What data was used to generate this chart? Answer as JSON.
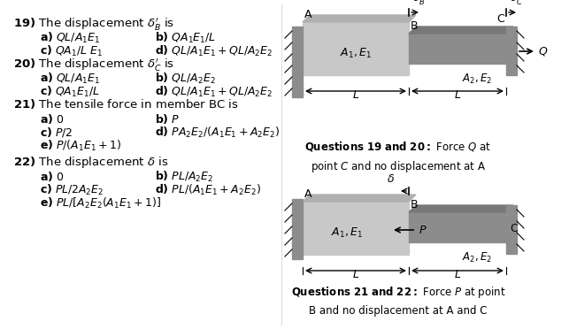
{
  "bg_color": "#ffffff",
  "text_color": "#000000",
  "gray_light": "#c8c8c8",
  "gray_dark": "#888888",
  "gray_wall": "#707070",
  "q19_title": "19) The displacement $\\delta_B^{\\prime}$ is",
  "q19_a": "a) $QL/A_1E_1$",
  "q19_b": "b) $QA_1E_1/L$",
  "q19_c": "c) $QA_1/L\\ E_1$",
  "q19_d": "d) $QL/A_1E_1 + QL/A_2E_2$",
  "q20_title": "20) The displacement $\\delta_C^{\\prime}$ is",
  "q20_a": "a) $QL/A_1E_1$",
  "q20_b": "b) $QL/A_2E_2$",
  "q20_c": "c) $QA_1E_1/L$",
  "q20_d": "d) $QL/A_1E_1 + QL/A_2E_2$",
  "q21_title": "21) The tensile force in member BC is",
  "q21_a": "a) 0",
  "q21_b": "b) $P$",
  "q21_c": "c) $P/2$",
  "q21_d": "d) $PA_2E_2/(A_1E_1+A_2E_2)$",
  "q21_e": "e) $P/(A_1E_1+1)$",
  "q22_title": "22) The displacement $\\delta$ is",
  "q22_a": "a) 0",
  "q22_b": "b) $PL/A_2E_2$",
  "q22_c": "c) $PL/2A_2E_2$",
  "q22_d": "d) $PL/(A_1E_1+A_2E_2)$",
  "q22_e": "e) $PL/[A_2E_2(A_1E_1+1)]$",
  "cap19_bold": "Questions 19 and 20:",
  "cap19_rest": " Force $Q$ at\npoint $C$ and no displacement at A",
  "cap21_bold": "Questions 21 and 22:",
  "cap21_rest": " Force $P$ at point\nB and no displacement at A and C"
}
